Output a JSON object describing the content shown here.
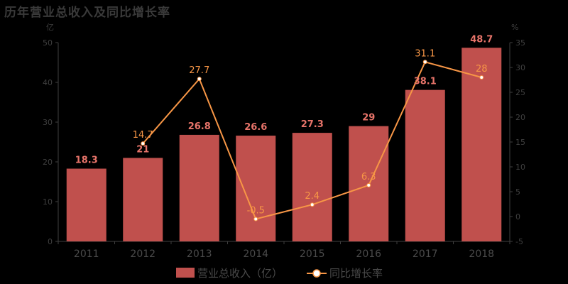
{
  "chart_data": {
    "type": "bar",
    "title": "历年营业总收入及同比增长率",
    "categories": [
      "2011",
      "2012",
      "2013",
      "2014",
      "2015",
      "2016",
      "2017",
      "2018"
    ],
    "series": [
      {
        "name": "营业总收入（亿）",
        "type": "bar",
        "axis": "left",
        "values": [
          18.3,
          21,
          26.8,
          26.6,
          27.3,
          29,
          38.1,
          48.7
        ],
        "labels": [
          "18.3",
          "21",
          "26.8",
          "26.6",
          "27.3",
          "29",
          "38.1",
          "48.7"
        ],
        "color": "#c0504d"
      },
      {
        "name": "同比增长率",
        "type": "line",
        "axis": "right",
        "values": [
          null,
          14.7,
          27.7,
          -0.5,
          2.4,
          6.3,
          31.1,
          28
        ],
        "labels": [
          "",
          "14.7",
          "27.7",
          "-0.5",
          "2.4",
          "6.3",
          "31.1",
          "28"
        ],
        "color": "#f79646"
      }
    ],
    "left_axis": {
      "unit": "亿",
      "range": [
        0,
        50
      ],
      "ticks": [
        0,
        10,
        20,
        30,
        40,
        50
      ]
    },
    "right_axis": {
      "unit": "%",
      "range": [
        -5,
        35
      ],
      "ticks": [
        -5,
        0,
        5,
        10,
        15,
        20,
        25,
        30,
        35
      ]
    },
    "grid": false,
    "legend_position": "bottom"
  },
  "colors": {
    "background": "#000000",
    "axis": "#3f3f3f",
    "bar_label": "#e8746a",
    "line_label": "#f79646",
    "marker_fill": "#ffffff"
  }
}
